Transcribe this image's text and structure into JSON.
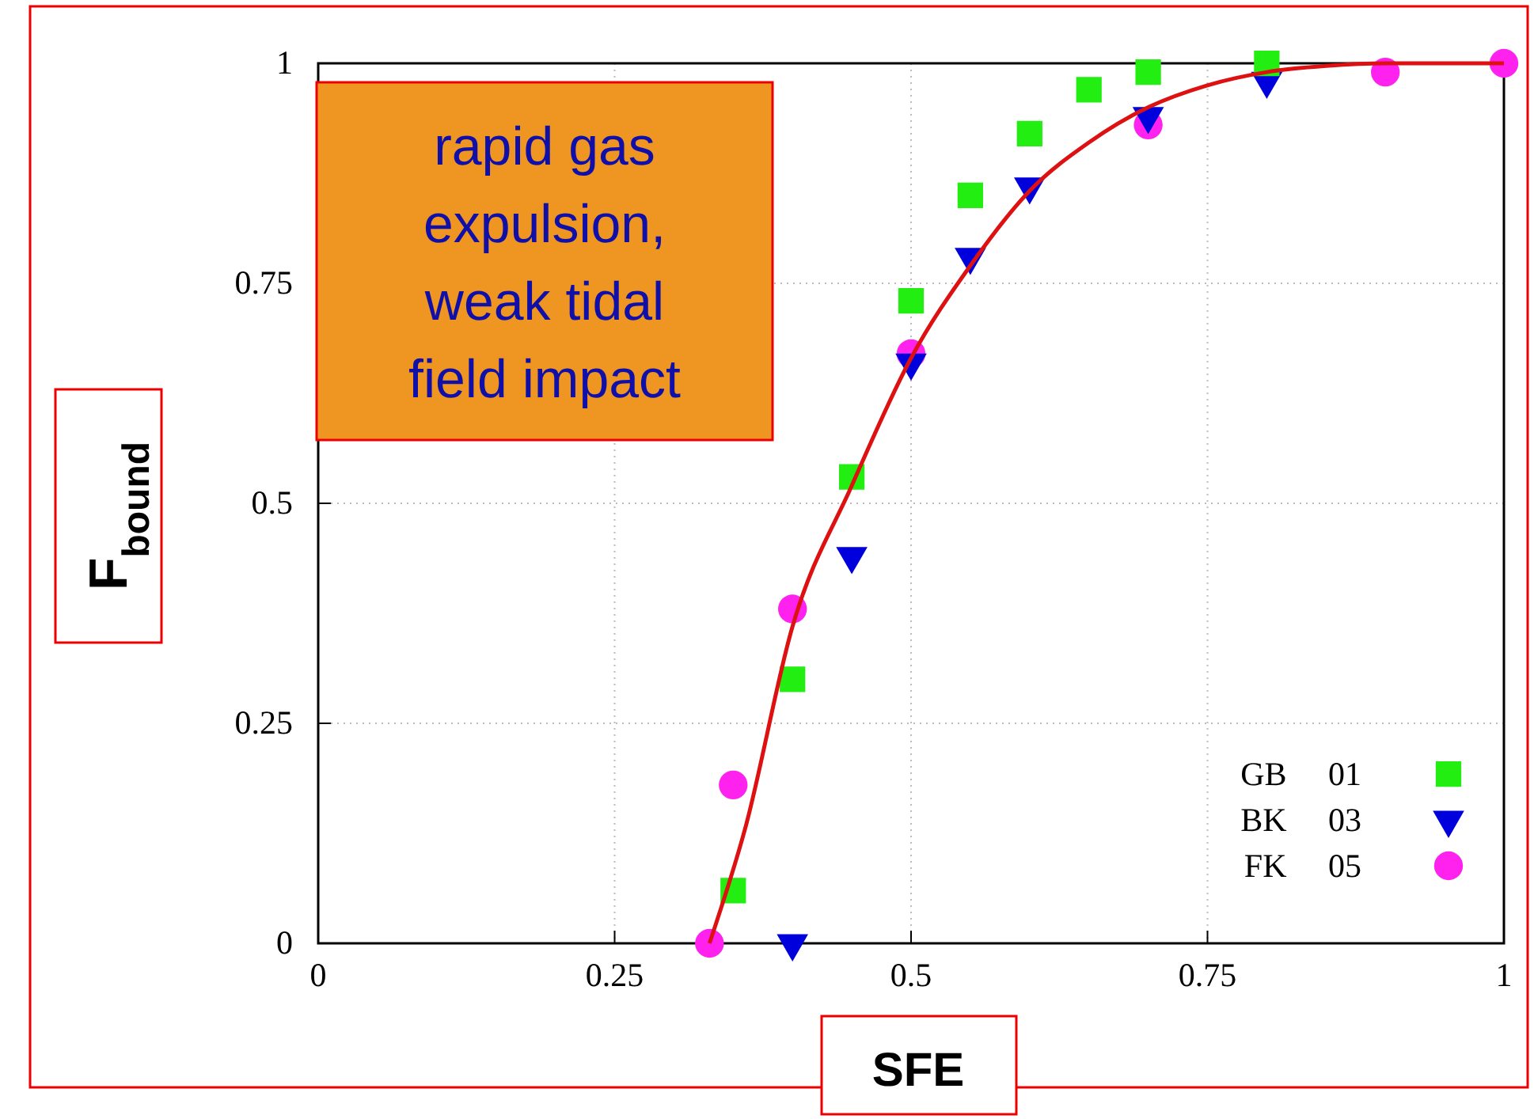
{
  "chart_data": {
    "type": "scatter",
    "xlabel": "SFE",
    "ylabel": "F$_{bound}$",
    "annotations": [
      "rapid gas expulsion, weak tidal field impact"
    ],
    "xlim": [
      0,
      1
    ],
    "ylim": [
      0,
      1
    ],
    "xticks": [
      0,
      0.25,
      0.5,
      0.75,
      1
    ],
    "yticks": [
      0,
      0.25,
      0.5,
      0.75,
      1
    ],
    "grid": true,
    "legend": "bottom right",
    "series": [
      {
        "name": "GB 01",
        "color": "#22ee11",
        "marker": "square",
        "x": [
          0.35,
          0.4,
          0.45,
          0.5,
          0.55,
          0.6,
          0.65,
          0.7,
          0.8
        ],
        "values": [
          0.06,
          0.3,
          0.53,
          0.73,
          0.85,
          0.92,
          0.97,
          0.99,
          1.0
        ]
      },
      {
        "name": "BK 03",
        "color": "#0000dd",
        "marker": "triangle",
        "x": [
          0.4,
          0.45,
          0.5,
          0.55,
          0.6,
          0.7,
          0.8
        ],
        "values": [
          0,
          0.44,
          0.66,
          0.78,
          0.86,
          0.94,
          0.98
        ]
      },
      {
        "name": "FK 05",
        "color": "#ff22ee",
        "marker": "circle",
        "x": [
          0.33,
          0.35,
          0.4,
          0.5,
          0.7,
          0.9,
          1.0
        ],
        "values": [
          0,
          0.18,
          0.38,
          0.67,
          0.93,
          0.99,
          1.0
        ]
      },
      {
        "type": "line",
        "color": "#dd1111",
        "marker": "none",
        "x": [
          0.33,
          0.36,
          0.4,
          0.45,
          0.5,
          0.55,
          0.6,
          0.65,
          0.7,
          0.75,
          0.8,
          0.85,
          0.9,
          1.0
        ],
        "values": [
          0,
          0.13,
          0.36,
          0.52,
          0.665,
          0.77,
          0.855,
          0.91,
          0.95,
          0.975,
          0.99,
          0.997,
          1,
          1
        ]
      }
    ]
  }
}
